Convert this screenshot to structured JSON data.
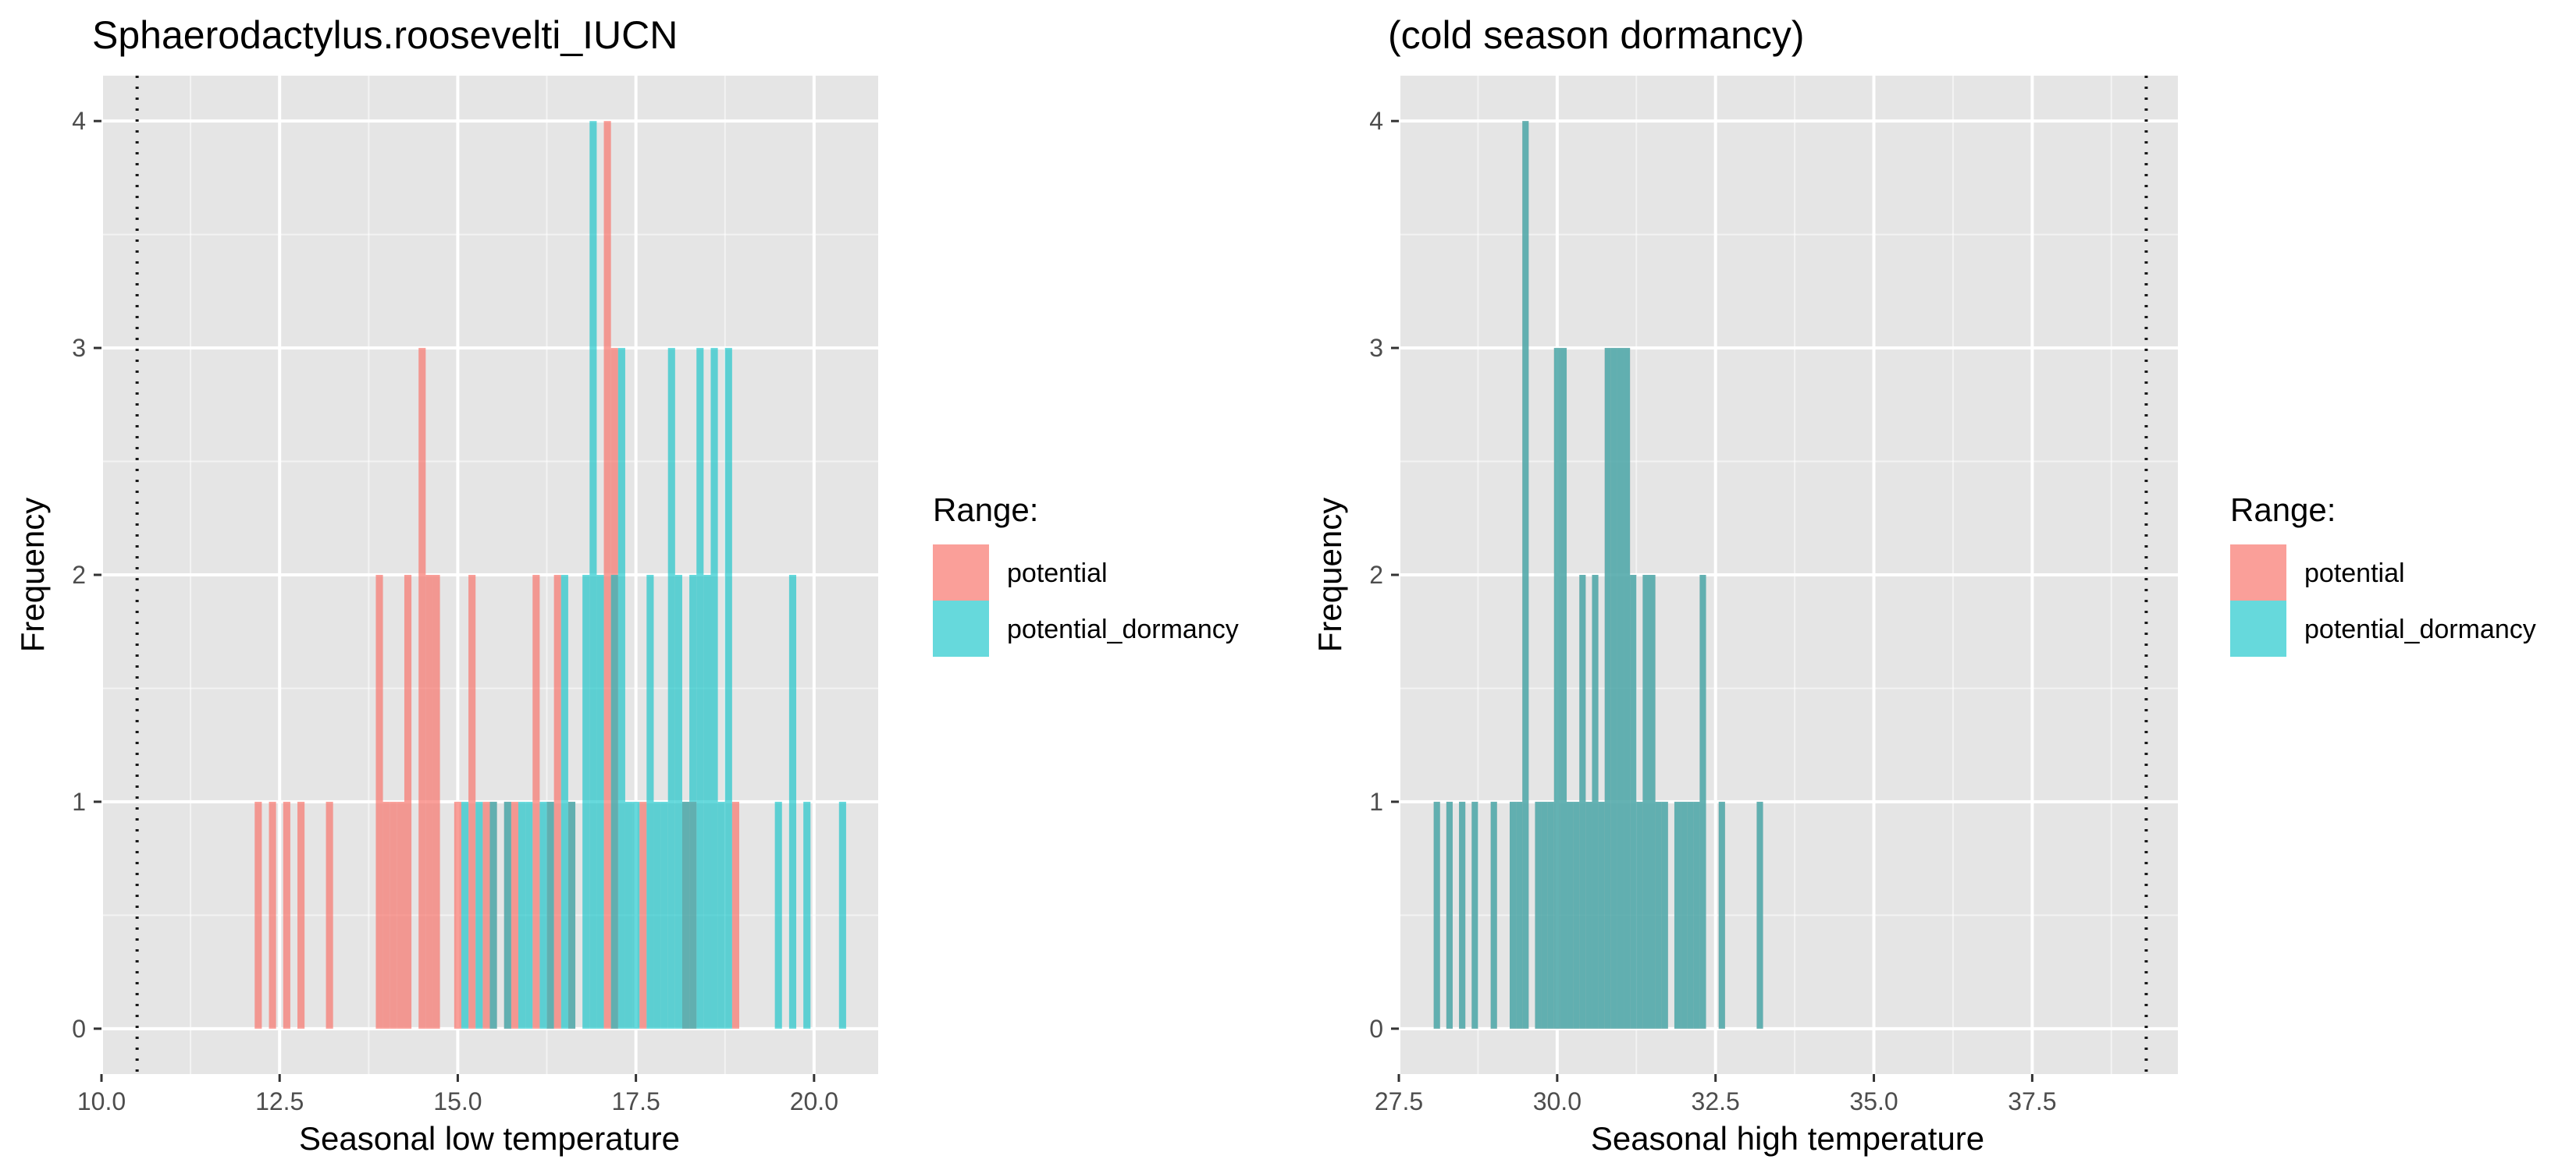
{
  "colors": {
    "potential": "#F8766D",
    "potential_dormancy": "#00BFC4",
    "panel_bg": "#E5E5E5",
    "grid": "#FFFFFF"
  },
  "legend": {
    "title": "Range:",
    "items": [
      "potential",
      "potential_dormancy"
    ]
  },
  "chart_data": [
    {
      "type": "bar",
      "title": "Sphaerodactylus.roosevelti_IUCN",
      "xlabel": "Seasonal low temperature",
      "ylabel": "Frequency",
      "xlim": [
        10.0,
        20.9
      ],
      "ylim": [
        -0.2,
        4.2
      ],
      "xticks": [
        "10.0",
        "12.5",
        "15.0",
        "17.5",
        "20.0"
      ],
      "yticks": [
        "0",
        "1",
        "2",
        "3",
        "4"
      ],
      "bin_width": 0.1,
      "reference_line_x": 10.5,
      "series": [
        {
          "name": "potential",
          "bins": [
            {
              "x": 12.2,
              "count": 1
            },
            {
              "x": 12.4,
              "count": 1
            },
            {
              "x": 12.6,
              "count": 1
            },
            {
              "x": 12.8,
              "count": 1
            },
            {
              "x": 13.2,
              "count": 1
            },
            {
              "x": 13.9,
              "count": 2
            },
            {
              "x": 14.0,
              "count": 1
            },
            {
              "x": 14.1,
              "count": 1
            },
            {
              "x": 14.2,
              "count": 1
            },
            {
              "x": 14.3,
              "count": 2
            },
            {
              "x": 14.5,
              "count": 3
            },
            {
              "x": 14.6,
              "count": 2
            },
            {
              "x": 14.7,
              "count": 2
            },
            {
              "x": 15.0,
              "count": 1
            },
            {
              "x": 15.2,
              "count": 2
            },
            {
              "x": 15.4,
              "count": 1
            },
            {
              "x": 15.5,
              "count": 1
            },
            {
              "x": 15.7,
              "count": 1
            },
            {
              "x": 15.8,
              "count": 1
            },
            {
              "x": 16.1,
              "count": 2
            },
            {
              "x": 16.3,
              "count": 1
            },
            {
              "x": 16.4,
              "count": 2
            },
            {
              "x": 16.6,
              "count": 1
            },
            {
              "x": 17.1,
              "count": 4
            },
            {
              "x": 17.2,
              "count": 3
            },
            {
              "x": 17.6,
              "count": 1
            },
            {
              "x": 18.2,
              "count": 1
            },
            {
              "x": 18.3,
              "count": 1
            },
            {
              "x": 18.9,
              "count": 1
            }
          ]
        },
        {
          "name": "potential_dormancy",
          "bins": [
            {
              "x": 15.1,
              "count": 1
            },
            {
              "x": 15.3,
              "count": 1
            },
            {
              "x": 15.5,
              "count": 1
            },
            {
              "x": 15.7,
              "count": 1
            },
            {
              "x": 15.9,
              "count": 1
            },
            {
              "x": 16.0,
              "count": 1
            },
            {
              "x": 16.2,
              "count": 1
            },
            {
              "x": 16.3,
              "count": 1
            },
            {
              "x": 16.5,
              "count": 2
            },
            {
              "x": 16.6,
              "count": 1
            },
            {
              "x": 16.8,
              "count": 2
            },
            {
              "x": 16.9,
              "count": 4
            },
            {
              "x": 17.0,
              "count": 2
            },
            {
              "x": 17.2,
              "count": 2
            },
            {
              "x": 17.3,
              "count": 3
            },
            {
              "x": 17.4,
              "count": 1
            },
            {
              "x": 17.5,
              "count": 1
            },
            {
              "x": 17.7,
              "count": 2
            },
            {
              "x": 17.8,
              "count": 1
            },
            {
              "x": 17.9,
              "count": 1
            },
            {
              "x": 18.0,
              "count": 3
            },
            {
              "x": 18.1,
              "count": 2
            },
            {
              "x": 18.2,
              "count": 1
            },
            {
              "x": 18.3,
              "count": 2
            },
            {
              "x": 18.4,
              "count": 3
            },
            {
              "x": 18.5,
              "count": 2
            },
            {
              "x": 18.6,
              "count": 3
            },
            {
              "x": 18.7,
              "count": 1
            },
            {
              "x": 18.8,
              "count": 3
            },
            {
              "x": 19.5,
              "count": 1
            },
            {
              "x": 19.7,
              "count": 2
            },
            {
              "x": 19.9,
              "count": 1
            },
            {
              "x": 20.4,
              "count": 1
            }
          ]
        }
      ]
    },
    {
      "type": "bar",
      "title": "(cold season dormancy)",
      "xlabel": "Seasonal high temperature",
      "ylabel": "Frequency",
      "xlim": [
        27.5,
        39.8
      ],
      "ylim": [
        -0.2,
        4.2
      ],
      "xticks": [
        "27.5",
        "30.0",
        "32.5",
        "35.0",
        "37.5"
      ],
      "yticks": [
        "0",
        "1",
        "2",
        "3",
        "4"
      ],
      "bin_width": 0.1,
      "reference_line_x": 39.3,
      "series": [
        {
          "name": "potential",
          "bins": [
            {
              "x": 28.1,
              "count": 1
            },
            {
              "x": 28.3,
              "count": 1
            },
            {
              "x": 28.5,
              "count": 1
            },
            {
              "x": 28.7,
              "count": 1
            },
            {
              "x": 29.0,
              "count": 1
            },
            {
              "x": 29.3,
              "count": 1
            },
            {
              "x": 29.4,
              "count": 1
            },
            {
              "x": 29.5,
              "count": 4
            },
            {
              "x": 29.7,
              "count": 1
            },
            {
              "x": 29.8,
              "count": 1
            },
            {
              "x": 29.9,
              "count": 1
            },
            {
              "x": 30.0,
              "count": 3
            },
            {
              "x": 30.1,
              "count": 3
            },
            {
              "x": 30.2,
              "count": 1
            },
            {
              "x": 30.3,
              "count": 1
            },
            {
              "x": 30.4,
              "count": 2
            },
            {
              "x": 30.5,
              "count": 1
            },
            {
              "x": 30.6,
              "count": 2
            },
            {
              "x": 30.7,
              "count": 1
            },
            {
              "x": 30.8,
              "count": 3
            },
            {
              "x": 30.9,
              "count": 3
            },
            {
              "x": 31.0,
              "count": 3
            },
            {
              "x": 31.1,
              "count": 3
            },
            {
              "x": 31.2,
              "count": 2
            },
            {
              "x": 31.3,
              "count": 1
            },
            {
              "x": 31.4,
              "count": 2
            },
            {
              "x": 31.5,
              "count": 2
            },
            {
              "x": 31.6,
              "count": 1
            },
            {
              "x": 31.7,
              "count": 1
            },
            {
              "x": 31.9,
              "count": 1
            },
            {
              "x": 32.0,
              "count": 1
            },
            {
              "x": 32.1,
              "count": 1
            },
            {
              "x": 32.2,
              "count": 1
            },
            {
              "x": 32.3,
              "count": 2
            },
            {
              "x": 32.6,
              "count": 1
            },
            {
              "x": 33.2,
              "count": 1
            }
          ]
        },
        {
          "name": "potential_dormancy",
          "bins": [
            {
              "x": 28.1,
              "count": 1
            },
            {
              "x": 28.3,
              "count": 1
            },
            {
              "x": 28.5,
              "count": 1
            },
            {
              "x": 28.7,
              "count": 1
            },
            {
              "x": 29.0,
              "count": 1
            },
            {
              "x": 29.3,
              "count": 1
            },
            {
              "x": 29.4,
              "count": 1
            },
            {
              "x": 29.5,
              "count": 4
            },
            {
              "x": 29.7,
              "count": 1
            },
            {
              "x": 29.8,
              "count": 1
            },
            {
              "x": 29.9,
              "count": 1
            },
            {
              "x": 30.0,
              "count": 3
            },
            {
              "x": 30.1,
              "count": 3
            },
            {
              "x": 30.2,
              "count": 1
            },
            {
              "x": 30.3,
              "count": 1
            },
            {
              "x": 30.4,
              "count": 2
            },
            {
              "x": 30.5,
              "count": 1
            },
            {
              "x": 30.6,
              "count": 2
            },
            {
              "x": 30.7,
              "count": 1
            },
            {
              "x": 30.8,
              "count": 3
            },
            {
              "x": 30.9,
              "count": 3
            },
            {
              "x": 31.0,
              "count": 3
            },
            {
              "x": 31.1,
              "count": 3
            },
            {
              "x": 31.2,
              "count": 2
            },
            {
              "x": 31.3,
              "count": 1
            },
            {
              "x": 31.4,
              "count": 2
            },
            {
              "x": 31.5,
              "count": 2
            },
            {
              "x": 31.6,
              "count": 1
            },
            {
              "x": 31.7,
              "count": 1
            },
            {
              "x": 31.9,
              "count": 1
            },
            {
              "x": 32.0,
              "count": 1
            },
            {
              "x": 32.1,
              "count": 1
            },
            {
              "x": 32.2,
              "count": 1
            },
            {
              "x": 32.3,
              "count": 2
            },
            {
              "x": 32.6,
              "count": 1
            },
            {
              "x": 33.2,
              "count": 1
            }
          ]
        }
      ]
    }
  ]
}
